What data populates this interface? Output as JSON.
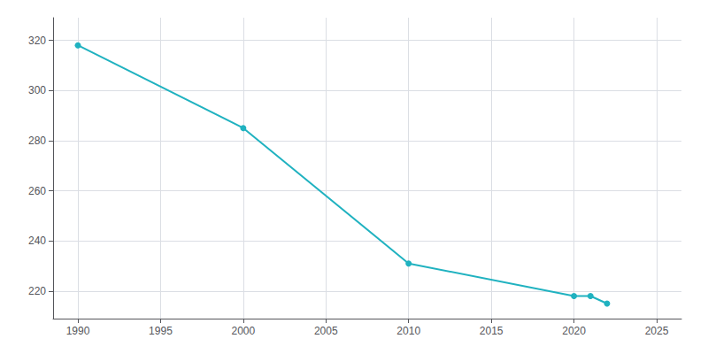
{
  "chart_data": {
    "type": "line",
    "x": [
      1990,
      2000,
      2010,
      2020,
      2021,
      2022
    ],
    "values": [
      318,
      285,
      231,
      218,
      218,
      215
    ],
    "color": "#20B2C0",
    "marker": "circle",
    "xlim": [
      1988.5,
      2026.5
    ],
    "ylim": [
      209,
      329
    ],
    "xticks": [
      1990,
      1995,
      2000,
      2005,
      2010,
      2015,
      2020,
      2025
    ],
    "yticks": [
      220,
      240,
      260,
      280,
      300,
      320
    ],
    "grid": true
  }
}
